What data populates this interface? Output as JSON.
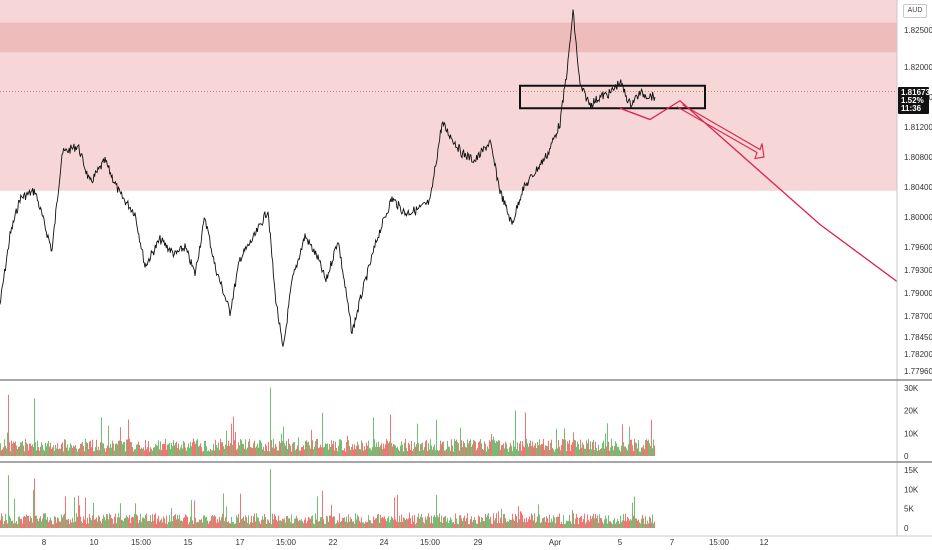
{
  "chart": {
    "currency": "AUD",
    "current_price": "1.81673",
    "change_pct": "1.52%",
    "countdown": "11:36",
    "colors": {
      "zone": "#f6d6d6",
      "zone_band": "#efbcbc",
      "candle": "#111111",
      "arrow": "#e0204a",
      "vol_up": "#4caf50",
      "vol_down": "#ef5350",
      "badge": "#111111",
      "axis_text": "#333333"
    }
  },
  "chart_data": [
    {
      "type": "line",
      "title": "",
      "price_axis_ticks": [
        "1.82500",
        "1.82000",
        "1.81600",
        "1.81200",
        "1.80800",
        "1.80400",
        "1.80000",
        "1.79600",
        "1.79300",
        "1.79000",
        "1.78700",
        "1.78450",
        "1.78200",
        "1.77960"
      ],
      "time_axis_ticks": [
        "8",
        "10",
        "15:00",
        "15",
        "17",
        "15:00",
        "22",
        "24",
        "15:00",
        "29",
        "Apr",
        "5",
        "7",
        "15:00",
        "12"
      ],
      "price_path": [
        [
          0,
          1.7885
        ],
        [
          10,
          1.7975
        ],
        [
          20,
          1.8025
        ],
        [
          35,
          1.8035
        ],
        [
          52,
          1.7955
        ],
        [
          62,
          1.8085
        ],
        [
          78,
          1.8095
        ],
        [
          90,
          1.8045
        ],
        [
          105,
          1.8075
        ],
        [
          120,
          1.803
        ],
        [
          135,
          1.8005
        ],
        [
          145,
          1.7935
        ],
        [
          160,
          1.797
        ],
        [
          175,
          1.795
        ],
        [
          185,
          1.796
        ],
        [
          195,
          1.7925
        ],
        [
          205,
          1.8
        ],
        [
          215,
          1.7935
        ],
        [
          230,
          1.7875
        ],
        [
          240,
          1.7945
        ],
        [
          255,
          1.7975
        ],
        [
          268,
          1.801
        ],
        [
          275,
          1.79
        ],
        [
          283,
          1.7825
        ],
        [
          292,
          1.7915
        ],
        [
          305,
          1.7975
        ],
        [
          318,
          1.7945
        ],
        [
          326,
          1.7915
        ],
        [
          338,
          1.797
        ],
        [
          352,
          1.785
        ],
        [
          362,
          1.79
        ],
        [
          378,
          1.7975
        ],
        [
          392,
          1.8025
        ],
        [
          405,
          1.8005
        ],
        [
          418,
          1.801
        ],
        [
          430,
          1.802
        ],
        [
          442,
          1.8125
        ],
        [
          452,
          1.8105
        ],
        [
          462,
          1.8085
        ],
        [
          475,
          1.8075
        ],
        [
          490,
          1.81
        ],
        [
          500,
          1.8035
        ],
        [
          512,
          1.799
        ],
        [
          522,
          1.8035
        ],
        [
          535,
          1.806
        ],
        [
          548,
          1.8085
        ],
        [
          560,
          1.8125
        ],
        [
          568,
          1.8205
        ],
        [
          573,
          1.8275
        ],
        [
          580,
          1.8175
        ],
        [
          590,
          1.815
        ],
        [
          600,
          1.816
        ],
        [
          610,
          1.8165
        ],
        [
          620,
          1.818
        ],
        [
          630,
          1.815
        ],
        [
          640,
          1.8165
        ],
        [
          655,
          1.816
        ]
      ],
      "resistance_zone": [
        1.8035,
        1.8275
      ],
      "resistance_band": [
        1.822,
        1.826
      ],
      "consolidation_box": {
        "x": [
          520,
          705
        ],
        "y": [
          1.8145,
          1.8175
        ]
      },
      "projection_path": [
        [
          620,
          1.8145
        ],
        [
          650,
          1.813
        ],
        [
          680,
          1.8155
        ],
        [
          820,
          1.799
        ],
        [
          897,
          1.7915
        ]
      ]
    },
    {
      "type": "bar",
      "title": "",
      "y_ticks": [
        "30K",
        "20K",
        "10K",
        "0"
      ],
      "ylim": [
        0,
        32000
      ]
    },
    {
      "type": "bar",
      "title": "",
      "y_ticks": [
        "15K",
        "10K",
        "5K",
        "0"
      ],
      "ylim": [
        0,
        17000
      ]
    }
  ]
}
